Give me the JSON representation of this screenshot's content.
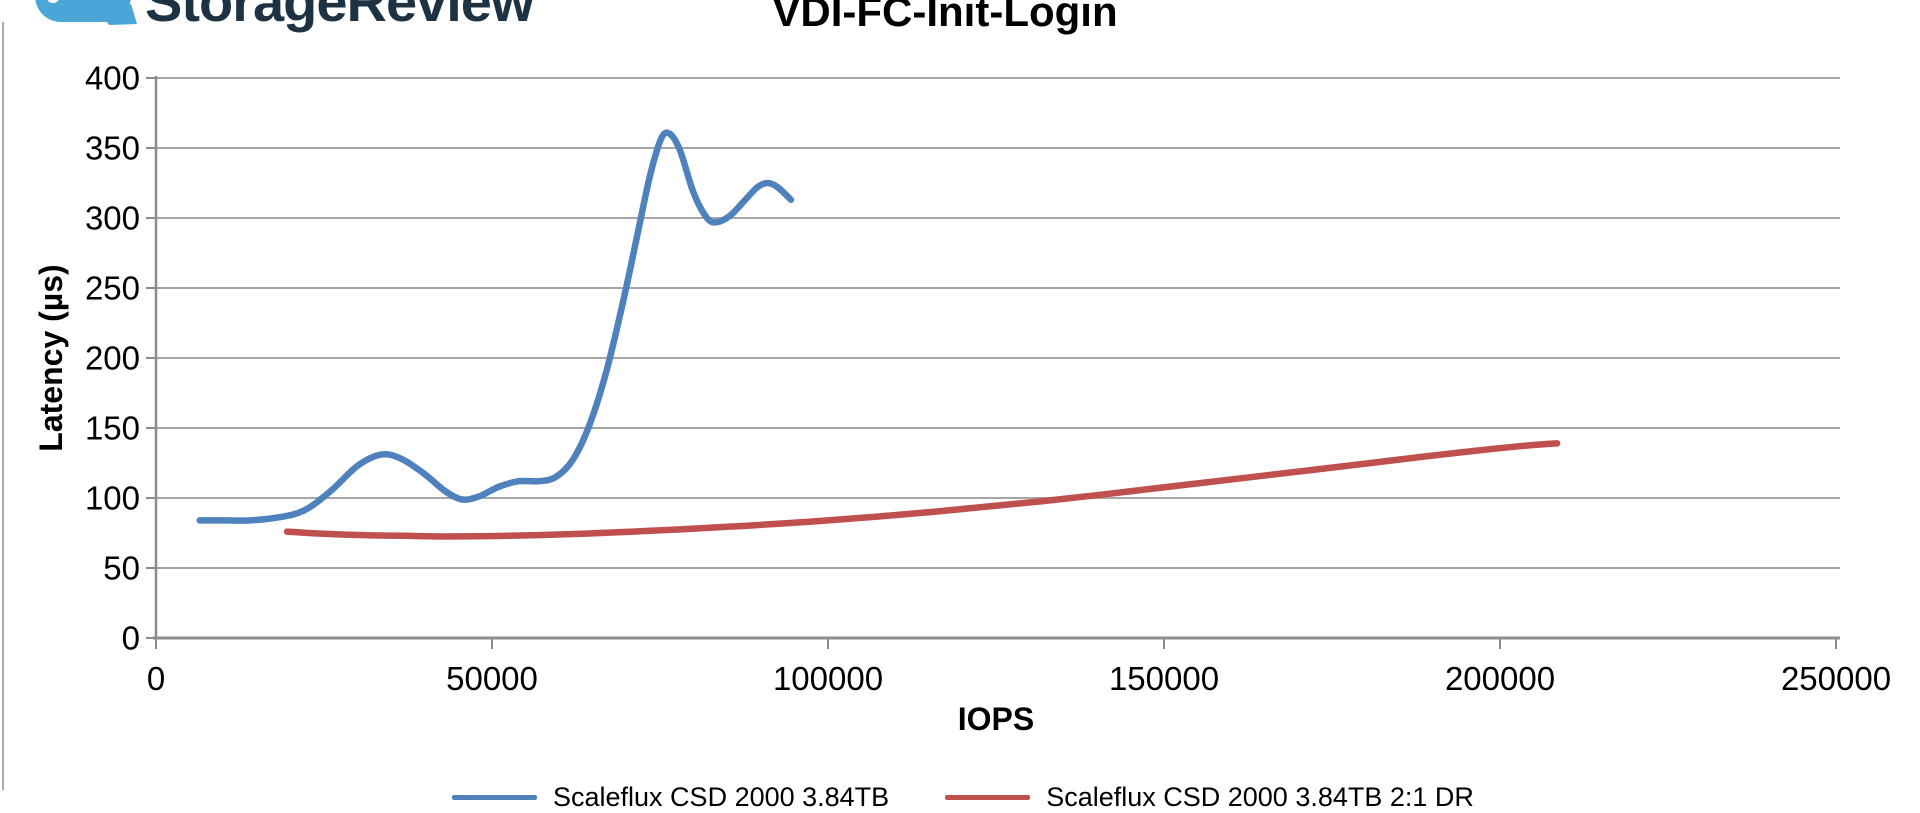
{
  "logo": {
    "text": "StorageReview",
    "icon_color": "#49a6d6",
    "text_color": "#1d3243"
  },
  "chart_data": {
    "type": "line",
    "title": "VDI-FC-Init-Login",
    "xlabel": "IOPS",
    "ylabel": "Latency (µs)",
    "xlim": [
      0,
      250000
    ],
    "ylim": [
      0,
      400
    ],
    "xticks": [
      0,
      50000,
      100000,
      150000,
      200000,
      250000
    ],
    "yticks": [
      0,
      50,
      100,
      150,
      200,
      250,
      300,
      350,
      400
    ],
    "grid": "horizontal",
    "legend_position": "bottom",
    "colors": {
      "gridline": "#a6a6a6",
      "axis": "#8c8c8c",
      "text": "#000000"
    },
    "series": [
      {
        "name": "Scaleflux CSD 2000 3.84TB",
        "color": "#4F81BD",
        "points": [
          [
            6500,
            84
          ],
          [
            10000,
            84
          ],
          [
            14000,
            84
          ],
          [
            18000,
            86
          ],
          [
            22000,
            91
          ],
          [
            26000,
            105
          ],
          [
            30000,
            123
          ],
          [
            33500,
            131
          ],
          [
            36500,
            128
          ],
          [
            40000,
            117
          ],
          [
            43000,
            105
          ],
          [
            45500,
            99
          ],
          [
            48000,
            101
          ],
          [
            51000,
            108
          ],
          [
            54000,
            112
          ],
          [
            57000,
            112
          ],
          [
            59500,
            115
          ],
          [
            62000,
            127
          ],
          [
            64500,
            152
          ],
          [
            67000,
            190
          ],
          [
            69500,
            240
          ],
          [
            71500,
            285
          ],
          [
            73500,
            330
          ],
          [
            75200,
            357
          ],
          [
            76500,
            360
          ],
          [
            78000,
            348
          ],
          [
            80000,
            318
          ],
          [
            82000,
            300
          ],
          [
            83500,
            297
          ],
          [
            85500,
            302
          ],
          [
            87500,
            312
          ],
          [
            89500,
            322
          ],
          [
            91000,
            325
          ],
          [
            92500,
            322
          ],
          [
            94500,
            313
          ]
        ]
      },
      {
        "name": "Scaleflux CSD 2000 3.84TB 2:1 DR",
        "color": "#C0504D",
        "points": [
          [
            19500,
            76
          ],
          [
            25000,
            74.5
          ],
          [
            31000,
            73.5
          ],
          [
            37000,
            73
          ],
          [
            43000,
            72.5
          ],
          [
            50000,
            72.8
          ],
          [
            57000,
            73.5
          ],
          [
            64000,
            74.6
          ],
          [
            71000,
            76
          ],
          [
            78000,
            77.6
          ],
          [
            85000,
            79.4
          ],
          [
            92000,
            81.4
          ],
          [
            100000,
            84
          ],
          [
            108000,
            87
          ],
          [
            116000,
            90.3
          ],
          [
            124000,
            94
          ],
          [
            132000,
            97.8
          ],
          [
            140000,
            102
          ],
          [
            148000,
            106.5
          ],
          [
            156000,
            111
          ],
          [
            164000,
            115.5
          ],
          [
            172000,
            120
          ],
          [
            180000,
            124.6
          ],
          [
            188000,
            129.2
          ],
          [
            196000,
            133.6
          ],
          [
            202000,
            136.6
          ],
          [
            206500,
            138.4
          ],
          [
            208500,
            139
          ]
        ]
      }
    ]
  }
}
